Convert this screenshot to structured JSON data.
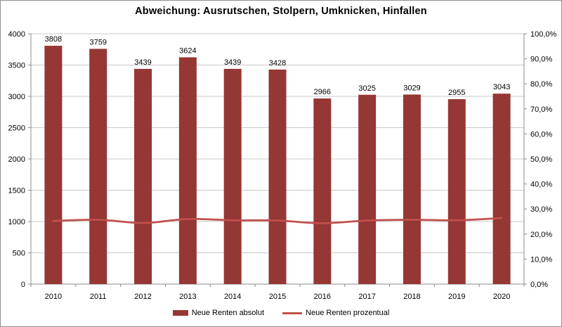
{
  "chart_data": {
    "type": "bar",
    "title": "Abweichung: Ausrutschen, Stolpern, Umknicken, Hinfallen",
    "categories": [
      "2010",
      "2011",
      "2012",
      "2013",
      "2014",
      "2015",
      "2016",
      "2017",
      "2018",
      "2019",
      "2020"
    ],
    "series": [
      {
        "name": "Neue Renten absolut",
        "type": "bar",
        "axis": "left",
        "values": [
          3808,
          3759,
          3439,
          3624,
          3439,
          3428,
          2966,
          3025,
          3029,
          2955,
          3043
        ],
        "data_labels": [
          "3808",
          "3759",
          "3439",
          "3624",
          "3439",
          "3428",
          "2966",
          "3025",
          "3029",
          "2955",
          "3043"
        ]
      },
      {
        "name": "Neue Renten prozentual",
        "type": "line",
        "axis": "right",
        "values_percent": [
          25.2,
          25.7,
          24.4,
          26.0,
          25.5,
          25.4,
          24.3,
          25.4,
          25.7,
          25.5,
          26.4
        ]
      }
    ],
    "left_axis": {
      "min": 0,
      "max": 4000,
      "step": 500,
      "tick_labels": [
        "0",
        "500",
        "1000",
        "1500",
        "2000",
        "2500",
        "3000",
        "3500",
        "4000"
      ]
    },
    "right_axis": {
      "min": 0,
      "max": 100,
      "step": 10,
      "tick_labels": [
        "0,0%",
        "10,0%",
        "20,0%",
        "30,0%",
        "40,0%",
        "50,0%",
        "60,0%",
        "70,0%",
        "80,0%",
        "90,0%",
        "100,0%"
      ]
    },
    "grid": true,
    "legend_position": "bottom",
    "colors": {
      "bar": "#953734",
      "line": "#C0504D",
      "grid": "#c9c9c9",
      "axis": "#8c8c8c",
      "text": "#000000"
    }
  }
}
